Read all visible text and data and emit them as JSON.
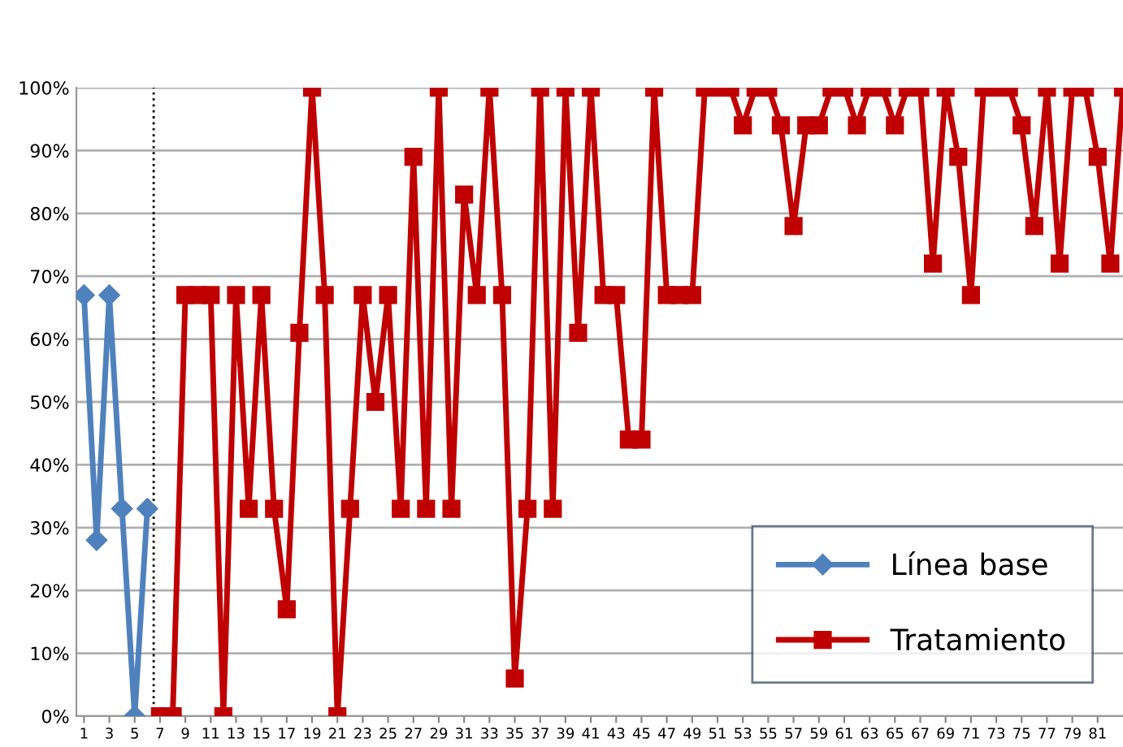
{
  "chart_data": {
    "type": "line",
    "x": [
      1,
      2,
      3,
      4,
      5,
      6,
      7,
      8,
      9,
      10,
      11,
      12,
      13,
      14,
      15,
      16,
      17,
      18,
      19,
      20,
      21,
      22,
      23,
      24,
      25,
      26,
      27,
      28,
      29,
      30,
      31,
      32,
      33,
      34,
      35,
      36,
      37,
      38,
      39,
      40,
      41,
      42,
      43,
      44,
      45,
      46,
      47,
      48,
      49,
      50,
      51,
      52,
      53,
      54,
      55,
      56,
      57,
      58,
      59,
      60,
      61,
      62,
      63,
      64,
      65,
      66,
      67,
      68,
      69,
      70,
      71,
      72,
      73,
      74,
      75,
      76,
      77,
      78,
      79,
      80,
      81,
      82,
      83
    ],
    "series": [
      {
        "name": "Línea base",
        "color": "#4f81bd",
        "marker": "diamond",
        "values": [
          67,
          28,
          67,
          33,
          0,
          33,
          null,
          null,
          null,
          null,
          null,
          null,
          null,
          null,
          null,
          null,
          null,
          null,
          null,
          null,
          null,
          null,
          null,
          null,
          null,
          null,
          null,
          null,
          null,
          null,
          null,
          null,
          null,
          null,
          null,
          null,
          null,
          null,
          null,
          null,
          null,
          null,
          null,
          null,
          null,
          null,
          null,
          null,
          null,
          null,
          null,
          null,
          null,
          null,
          null,
          null,
          null,
          null,
          null,
          null,
          null,
          null,
          null,
          null,
          null,
          null,
          null,
          null,
          null,
          null,
          null,
          null,
          null,
          null,
          null,
          null,
          null,
          null,
          null,
          null,
          null,
          null,
          null
        ]
      },
      {
        "name": "Tratamiento",
        "color": "#c00000",
        "marker": "square",
        "values": [
          null,
          null,
          null,
          null,
          null,
          null,
          0,
          0,
          67,
          67,
          67,
          0,
          67,
          33,
          67,
          33,
          17,
          61,
          100,
          67,
          0,
          33,
          67,
          50,
          67,
          33,
          89,
          33,
          100,
          33,
          83,
          67,
          100,
          67,
          6,
          33,
          100,
          33,
          100,
          61,
          100,
          67,
          67,
          44,
          44,
          100,
          67,
          67,
          67,
          100,
          100,
          100,
          94,
          100,
          100,
          94,
          78,
          94,
          94,
          100,
          100,
          94,
          100,
          100,
          94,
          100,
          100,
          72,
          100,
          89,
          67,
          100,
          100,
          100,
          94,
          78,
          100,
          72,
          100,
          100,
          89,
          72,
          100
        ]
      }
    ],
    "xlim": [
      0.4,
      83
    ],
    "xticks": [
      1,
      3,
      5,
      7,
      9,
      11,
      13,
      15,
      17,
      19,
      21,
      23,
      25,
      27,
      29,
      31,
      33,
      35,
      37,
      39,
      41,
      43,
      45,
      47,
      49,
      51,
      53,
      55,
      57,
      59,
      61,
      63,
      65,
      67,
      69,
      71,
      73,
      75,
      77,
      79,
      81
    ],
    "ylim": [
      0,
      100
    ],
    "yticks": [
      {
        "value": 0,
        "label": "0%"
      },
      {
        "value": 10,
        "label": "10%"
      },
      {
        "value": 20,
        "label": "20%"
      },
      {
        "value": 30,
        "label": "30%"
      },
      {
        "value": 40,
        "label": "40%"
      },
      {
        "value": 50,
        "label": "50%"
      },
      {
        "value": 60,
        "label": "60%"
      },
      {
        "value": 70,
        "label": "70%"
      },
      {
        "value": 80,
        "label": "80%"
      },
      {
        "value": 90,
        "label": "90%"
      },
      {
        "value": 100,
        "label": "100%"
      }
    ],
    "ref_lines": [
      {
        "axis": "x",
        "value": 6.5,
        "color": "#000000",
        "line_style": "dotted"
      }
    ],
    "grid": "y",
    "legend": "bottom right"
  }
}
